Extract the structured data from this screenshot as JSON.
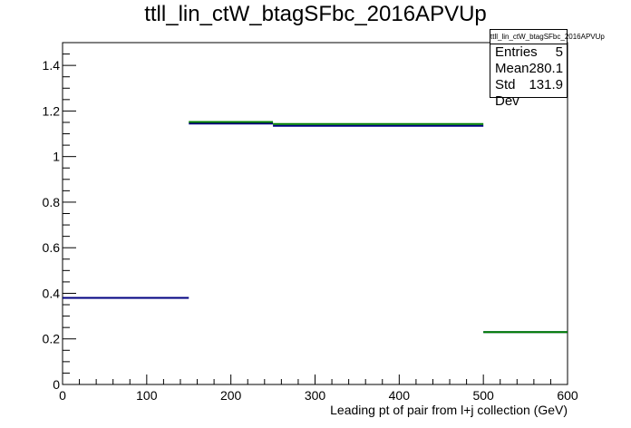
{
  "chart_data": {
    "type": "histogram",
    "title": "ttll_lin_ctW_btagSFbc_2016APVUp",
    "xlabel": "Leading pt of pair from l+j collection (GeV)",
    "ylabel": "",
    "xlim": [
      0,
      600
    ],
    "ylim": [
      0,
      1.5
    ],
    "x_ticks": [
      0,
      100,
      200,
      300,
      400,
      500,
      600
    ],
    "y_ticks": [
      0,
      0.2,
      0.4,
      0.6,
      0.8,
      1,
      1.2,
      1.4
    ],
    "grid": false,
    "series": [
      {
        "color": "#000080",
        "bins": [
          {
            "x0": 0,
            "x1": 150,
            "y": 0.38
          },
          {
            "x0": 150,
            "x1": 250,
            "y": 1.145
          },
          {
            "x0": 250,
            "x1": 500,
            "y": 1.135
          },
          {
            "x0": 500,
            "x1": 600,
            "y": 0.23
          }
        ]
      },
      {
        "color": "#008000",
        "bins": [
          {
            "x0": 150,
            "x1": 250,
            "y": 1.152
          },
          {
            "x0": 250,
            "x1": 500,
            "y": 1.143
          },
          {
            "x0": 500,
            "x1": 600,
            "y": 0.23
          }
        ]
      }
    ],
    "stats_box": {
      "name": "ttll_lin_ctW_btagSFbc_2016APVUp",
      "rows": [
        {
          "label": "Entries",
          "value": "5"
        },
        {
          "label": "Mean",
          "value": "280.1"
        },
        {
          "label": "Std Dev",
          "value": "131.9"
        }
      ]
    }
  }
}
